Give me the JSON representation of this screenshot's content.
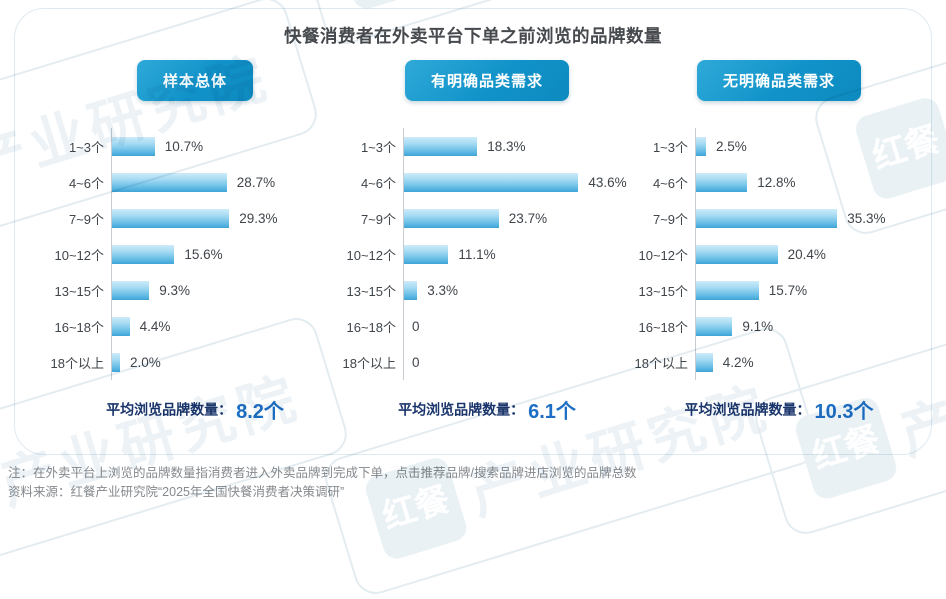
{
  "title": "快餐消费者在外卖平台下单之前浏览的品牌数量",
  "watermark": {
    "brand": "红餐",
    "org": "产业研究院"
  },
  "colors": {
    "button_blue": "#1193c9",
    "bar_top": "#cdebf9",
    "bar_bottom": "#3fa3d4",
    "avg_label_navy": "#1a356b",
    "avg_value_blue": "#1c6fc4",
    "title_gray": "#46494d",
    "note_gray": "#85898d"
  },
  "chart_data": [
    {
      "type": "bar",
      "title": "样本总体",
      "categories": [
        "1~3个",
        "4~6个",
        "7~9个",
        "10~12个",
        "13~15个",
        "16~18个",
        "18个以上"
      ],
      "values": [
        10.7,
        28.7,
        29.3,
        15.6,
        9.3,
        4.4,
        2.0
      ],
      "value_labels": [
        "10.7%",
        "28.7%",
        "29.3%",
        "15.6%",
        "9.3%",
        "4.4%",
        "2.0%"
      ],
      "xlabel": "",
      "ylabel": "",
      "xlim": [
        0,
        50
      ],
      "average_label": "平均浏览品牌数量：",
      "average_value": "8.2个"
    },
    {
      "type": "bar",
      "title": "有明确品类需求",
      "categories": [
        "1~3个",
        "4~6个",
        "7~9个",
        "10~12个",
        "13~15个",
        "16~18个",
        "18个以上"
      ],
      "values": [
        18.3,
        43.6,
        23.7,
        11.1,
        3.3,
        0,
        0
      ],
      "value_labels": [
        "18.3%",
        "43.6%",
        "23.7%",
        "11.1%",
        "3.3%",
        "0",
        "0"
      ],
      "xlabel": "",
      "ylabel": "",
      "xlim": [
        0,
        50
      ],
      "average_label": "平均浏览品牌数量：",
      "average_value": "6.1个"
    },
    {
      "type": "bar",
      "title": "无明确品类需求",
      "categories": [
        "1~3个",
        "4~6个",
        "7~9个",
        "10~12个",
        "13~15个",
        "16~18个",
        "18个以上"
      ],
      "values": [
        2.5,
        12.8,
        35.3,
        20.4,
        15.7,
        9.1,
        4.2
      ],
      "value_labels": [
        "2.5%",
        "12.8%",
        "35.3%",
        "20.4%",
        "15.7%",
        "9.1%",
        "4.2%"
      ],
      "xlabel": "",
      "ylabel": "",
      "xlim": [
        0,
        50
      ],
      "average_label": "平均浏览品牌数量：",
      "average_value": "10.3个"
    }
  ],
  "notes": [
    "注：在外卖平台上浏览的品牌数量指消费者进入外卖品牌到完成下单，点击推荐品牌/搜索品牌进店浏览的品牌总数",
    "资料来源：红餐产业研究院“2025年全国快餐消费者决策调研”"
  ]
}
